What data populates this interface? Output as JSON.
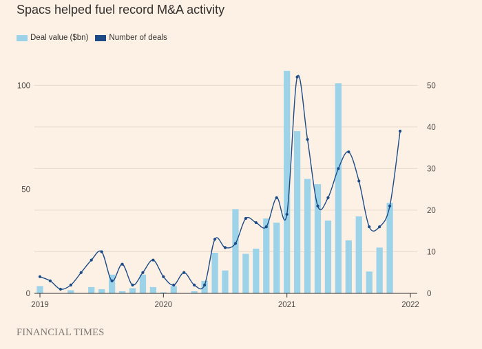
{
  "chart_data": {
    "type": "bar",
    "title": "Spacs helped fuel record M&A activity",
    "source": "FINANCIAL TIMES",
    "x": [
      0,
      1,
      2,
      3,
      4,
      5,
      6,
      7,
      8,
      9,
      10,
      11,
      12,
      13,
      14,
      15,
      16,
      17,
      18,
      19,
      20,
      21,
      22,
      23,
      24,
      25,
      26,
      27,
      28,
      29,
      30,
      31,
      32,
      33,
      34,
      35
    ],
    "xticks": [
      {
        "pos": 0,
        "label": "2019"
      },
      {
        "pos": 12,
        "label": "2020"
      },
      {
        "pos": 24,
        "label": "2021"
      },
      {
        "pos": 36,
        "label": "2022"
      }
    ],
    "xlim": [
      0,
      36
    ],
    "y_left": {
      "lim": [
        0,
        110
      ],
      "ticks": [
        0,
        50,
        100
      ]
    },
    "y_right": {
      "lim": [
        0,
        55
      ],
      "ticks": [
        0,
        10,
        20,
        30,
        40,
        50
      ]
    },
    "grid": true,
    "legend_position": "top-left",
    "series": [
      {
        "name": "Deal value ($bn)",
        "kind": "bar",
        "axis": "left",
        "color": "#9dd3e9",
        "values": [
          3.5,
          0,
          0,
          1.5,
          0,
          3,
          2,
          9,
          1,
          2.5,
          9,
          3,
          0.5,
          3.5,
          0,
          1,
          6,
          19.5,
          11,
          40.5,
          19,
          21.5,
          36,
          34,
          107,
          78,
          55,
          52.5,
          35,
          101,
          25.5,
          37,
          10.5,
          22,
          43.5,
          0
        ]
      },
      {
        "name": "Number of deals",
        "kind": "line",
        "axis": "right",
        "color": "#1b4a86",
        "values": [
          4,
          3,
          1,
          2,
          5,
          8,
          10,
          3,
          7,
          2,
          5,
          8,
          4,
          2,
          5,
          2,
          2,
          13,
          11,
          12,
          18,
          17,
          16,
          23,
          19,
          52,
          37,
          21,
          23,
          30,
          34,
          27,
          16,
          16,
          21,
          39
        ]
      }
    ]
  }
}
